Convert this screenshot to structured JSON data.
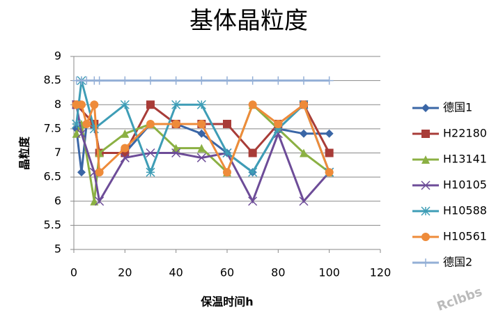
{
  "chart_data": {
    "type": "line",
    "title": "基体晶粒度",
    "x_label": "保温时间h",
    "y_label": "晶粒度",
    "watermark": "Rclbbs",
    "xlim": [
      0,
      120
    ],
    "xticks": [
      0,
      20,
      40,
      60,
      80,
      100,
      120
    ],
    "ylim": [
      5,
      9
    ],
    "yticks": [
      5,
      5.5,
      6,
      6.5,
      7,
      7.5,
      8,
      8.5,
      9
    ],
    "grid": true,
    "legend": "right",
    "series": [
      {
        "name": "德国1",
        "color": "#3A66A6",
        "marker": "diamond",
        "x": [
          1,
          3,
          5,
          8,
          10,
          20,
          30,
          40,
          50,
          60,
          70,
          80,
          90,
          100
        ],
        "values": [
          7.5,
          6.6,
          7.6,
          7.6,
          7.0,
          7.0,
          7.6,
          7.6,
          7.4,
          7.0,
          6.6,
          7.5,
          7.4,
          7.4
        ]
      },
      {
        "name": "H22180",
        "color": "#A83C38",
        "marker": "square",
        "x": [
          1,
          8,
          10,
          20,
          30,
          40,
          50,
          60,
          70,
          80,
          90,
          100
        ],
        "values": [
          8.0,
          7.6,
          7.0,
          7.0,
          8.0,
          7.6,
          7.6,
          7.6,
          7.0,
          7.6,
          8.0,
          7.0
        ]
      },
      {
        "name": "H13141",
        "color": "#8BB043",
        "marker": "triangle",
        "x": [
          1,
          3,
          8,
          10,
          20,
          30,
          40,
          50,
          60,
          70,
          80,
          90,
          100
        ],
        "values": [
          7.4,
          7.6,
          6.0,
          7.0,
          7.4,
          7.6,
          7.1,
          7.1,
          6.6,
          8.0,
          7.5,
          7.0,
          6.6
        ]
      },
      {
        "name": "H10105",
        "color": "#6D4C98",
        "marker": "x",
        "x": [
          1,
          3,
          8,
          10,
          20,
          30,
          40,
          50,
          60,
          70,
          80,
          90,
          100
        ],
        "values": [
          8.0,
          7.4,
          6.6,
          6.0,
          6.9,
          7.0,
          7.0,
          6.9,
          7.0,
          6.0,
          7.4,
          6.0,
          6.6
        ]
      },
      {
        "name": "H10588",
        "color": "#3E9DB6",
        "marker": "star",
        "x": [
          1,
          3,
          8,
          20,
          30,
          40,
          50,
          60,
          70,
          80,
          90,
          100
        ],
        "values": [
          7.6,
          8.5,
          7.5,
          8.0,
          6.6,
          8.0,
          8.0,
          7.0,
          6.6,
          7.5,
          8.0,
          6.6
        ]
      },
      {
        "name": "H10561",
        "color": "#EE8B3A",
        "marker": "circle",
        "x": [
          1,
          3,
          5,
          8,
          10,
          20,
          30,
          40,
          50,
          60,
          70,
          80,
          90,
          100
        ],
        "values": [
          8.0,
          8.0,
          7.6,
          8.0,
          6.6,
          7.1,
          7.6,
          7.6,
          7.6,
          6.6,
          8.0,
          7.6,
          8.0,
          6.6
        ]
      },
      {
        "name": "德国2",
        "color": "#93AFD6",
        "marker": "plus",
        "x": [
          1,
          3,
          5,
          8,
          10,
          20,
          30,
          40,
          50,
          60,
          70,
          80,
          90,
          100
        ],
        "values": [
          8.5,
          8.5,
          8.5,
          8.5,
          8.5,
          8.5,
          8.5,
          8.5,
          8.5,
          8.5,
          8.5,
          8.5,
          8.5,
          8.5
        ]
      }
    ]
  }
}
